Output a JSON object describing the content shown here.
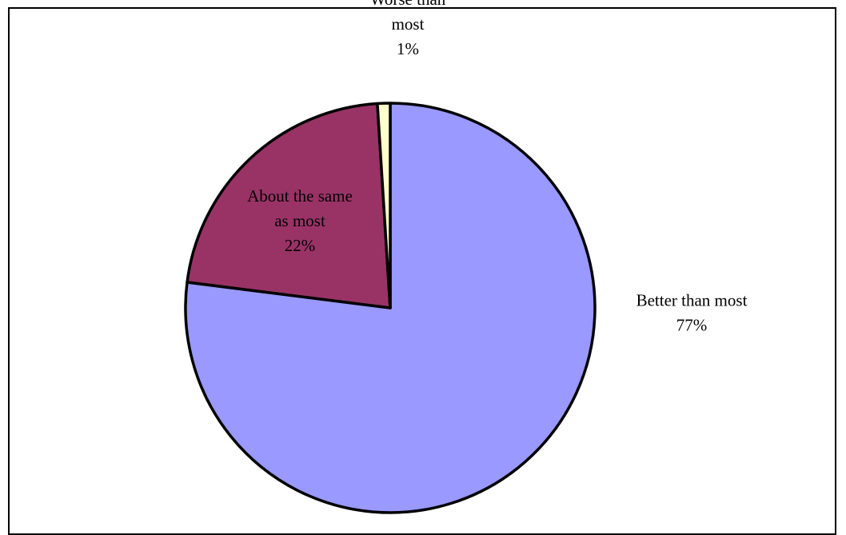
{
  "chart_data": {
    "type": "pie",
    "start_angle_deg": 0,
    "direction": "clockwise",
    "legend": "none",
    "slices": [
      {
        "label_lines": [
          "Better than most",
          "77%"
        ],
        "value": 77,
        "color": "#9999ff"
      },
      {
        "label_lines": [
          "About the same",
          "as most",
          "22%"
        ],
        "value": 22,
        "color": "#993366"
      },
      {
        "label_lines": [
          "Worse than",
          "most",
          "1%"
        ],
        "value": 1,
        "color": "#ffffcc"
      }
    ]
  }
}
